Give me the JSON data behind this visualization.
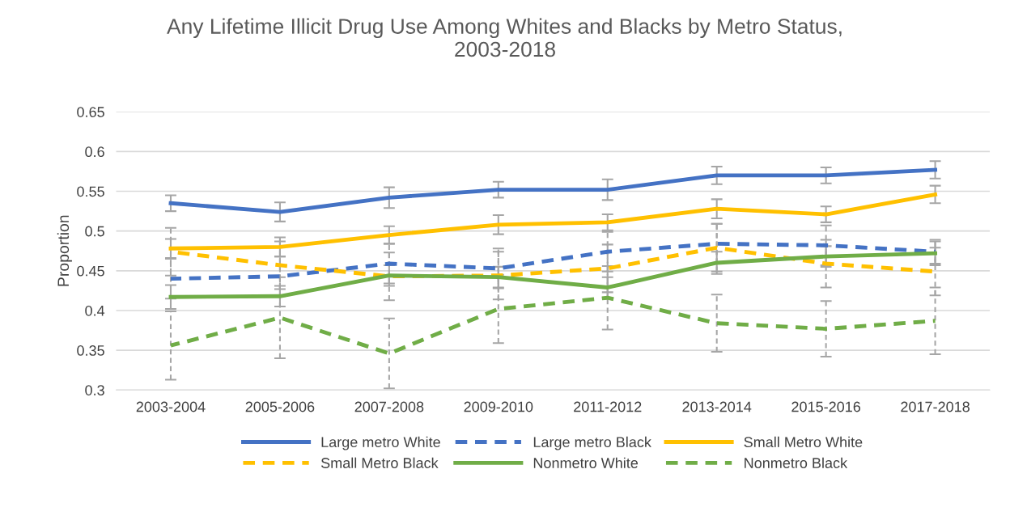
{
  "chart_data": {
    "type": "line",
    "title": "Any Lifetime Illicit Drug Use Among Whites and Blacks by Metro Status,\n2003-2018",
    "ylabel": "Proportion",
    "categories": [
      "2003-2004",
      "2005-2006",
      "2007-2008",
      "2009-2010",
      "2011-2012",
      "2013-2014",
      "2015-2016",
      "2017-2018"
    ],
    "ylim": [
      0.3,
      0.65
    ],
    "yticks": [
      {
        "value": 0.3,
        "label": "0.3"
      },
      {
        "value": 0.35,
        "label": "0.35"
      },
      {
        "value": 0.4,
        "label": "0.4"
      },
      {
        "value": 0.45,
        "label": "0.45"
      },
      {
        "value": 0.5,
        "label": "0.5"
      },
      {
        "value": 0.55,
        "label": "0.55"
      },
      {
        "value": 0.6,
        "label": "0.6"
      },
      {
        "value": 0.65,
        "label": "0.65"
      }
    ],
    "grid": "y",
    "legend": "bottom",
    "marker": "none",
    "series": [
      {
        "name": "Large metro White",
        "color": "#4472c4",
        "line_style": "solid",
        "values": [
          0.535,
          0.524,
          0.542,
          0.552,
          0.552,
          0.57,
          0.57,
          0.577
        ],
        "errors": [
          0.01,
          0.012,
          0.013,
          0.01,
          0.013,
          0.011,
          0.01,
          0.011
        ]
      },
      {
        "name": "Large metro Black",
        "color": "#4472c4",
        "line_style": "dashed",
        "values": [
          0.44,
          0.443,
          0.459,
          0.453,
          0.474,
          0.484,
          0.482,
          0.474
        ],
        "errors": [
          0.025,
          0.025,
          0.025,
          0.025,
          0.025,
          0.025,
          0.025,
          0.015
        ]
      },
      {
        "name": "Small Metro White",
        "color": "#ffc000",
        "line_style": "solid",
        "values": [
          0.478,
          0.48,
          0.495,
          0.508,
          0.511,
          0.528,
          0.521,
          0.546
        ],
        "errors": [
          0.012,
          0.012,
          0.011,
          0.012,
          0.01,
          0.012,
          0.01,
          0.011
        ]
      },
      {
        "name": "Small Metro Black",
        "color": "#ffc000",
        "line_style": "dashed",
        "values": [
          0.474,
          0.457,
          0.443,
          0.444,
          0.453,
          0.479,
          0.459,
          0.449
        ],
        "errors": [
          0.03,
          0.03,
          0.03,
          0.03,
          0.03,
          0.03,
          0.03,
          0.03
        ]
      },
      {
        "name": "Nonmetro White",
        "color": "#70ad47",
        "line_style": "solid",
        "values": [
          0.417,
          0.418,
          0.444,
          0.442,
          0.429,
          0.46,
          0.468,
          0.472
        ],
        "errors": [
          0.015,
          0.013,
          0.013,
          0.013,
          0.013,
          0.014,
          0.013,
          0.015
        ]
      },
      {
        "name": "Nonmetro Black",
        "color": "#70ad47",
        "line_style": "dashed",
        "values": [
          0.356,
          0.391,
          0.346,
          0.402,
          0.416,
          0.384,
          0.377,
          0.387
        ],
        "errors": [
          0.043,
          0.051,
          0.044,
          0.043,
          0.04,
          0.036,
          0.035,
          0.042
        ]
      }
    ]
  }
}
